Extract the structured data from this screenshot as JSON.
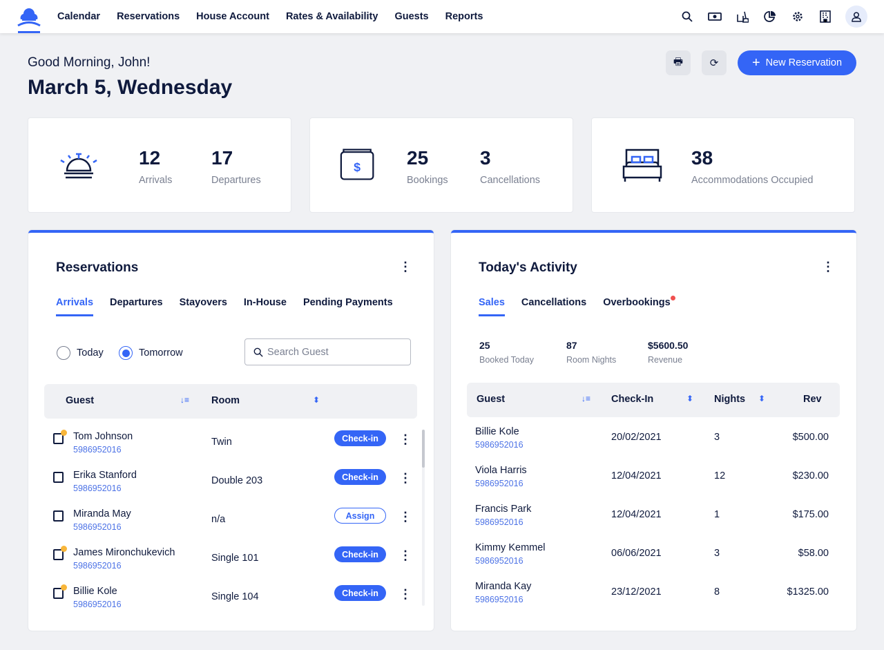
{
  "nav": [
    "Calendar",
    "Reservations",
    "House Account",
    "Rates & Availability",
    "Guests",
    "Reports"
  ],
  "header_icons": [
    "search-icon",
    "cash-icon",
    "housekeeping-icon",
    "pie-chart-icon",
    "gear-icon",
    "building-icon",
    "user-icon"
  ],
  "greeting": "Good Morning, John!",
  "date": "March 5, Wednesday",
  "new_reservation": "New Reservation",
  "stats": {
    "arrivals": {
      "value": "12",
      "label": "Arrivals"
    },
    "departures": {
      "value": "17",
      "label": "Departures"
    },
    "bookings": {
      "value": "25",
      "label": "Bookings"
    },
    "cancellations": {
      "value": "3",
      "label": "Cancellations"
    },
    "occupied": {
      "value": "38",
      "label": "Accommodations Occupied"
    }
  },
  "reservations": {
    "title": "Reservations",
    "tabs": [
      "Arrivals",
      "Departures",
      "Stayovers",
      "In-House",
      "Pending Payments"
    ],
    "radio": [
      "Today",
      "Tomorrow"
    ],
    "selected_radio": "Tomorrow",
    "search_placeholder": "Search Guest",
    "columns": [
      "Guest",
      "Room"
    ],
    "rows": [
      {
        "name": "Tom Johnson",
        "id": "5986952016",
        "room": "Twin",
        "action": "Check-in",
        "flag": true
      },
      {
        "name": "Erika Stanford",
        "id": "5986952016",
        "room": "Double 203",
        "action": "Check-in",
        "flag": false
      },
      {
        "name": "Miranda May",
        "id": "5986952016",
        "room": "n/a",
        "action": "Assign",
        "flag": false
      },
      {
        "name": "James Mironchukevich",
        "id": "5986952016",
        "room": "Single 101",
        "action": "Check-in",
        "flag": true
      },
      {
        "name": "Billie Kole",
        "id": "5986952016",
        "room": "Single 104",
        "action": "Check-in",
        "flag": true
      }
    ]
  },
  "activity": {
    "title": "Today's Activity",
    "tabs": [
      "Sales",
      "Cancellations",
      "Overbookings"
    ],
    "metrics": [
      {
        "value": "25",
        "label": "Booked Today"
      },
      {
        "value": "87",
        "label": "Room Nights"
      },
      {
        "value": "$5600.50",
        "label": "Revenue"
      }
    ],
    "columns": [
      "Guest",
      "Check-In",
      "Nights",
      "Rev"
    ],
    "rows": [
      {
        "name": "Billie Kole",
        "id": "5986952016",
        "checkin": "20/02/2021",
        "nights": "3",
        "rev": "$500.00"
      },
      {
        "name": "Viola Harris",
        "id": "5986952016",
        "checkin": "12/04/2021",
        "nights": "12",
        "rev": "$230.00"
      },
      {
        "name": "Francis Park",
        "id": "5986952016",
        "checkin": "12/04/2021",
        "nights": "1",
        "rev": "$175.00"
      },
      {
        "name": "Kimmy Kemmel",
        "id": "5986952016",
        "checkin": "06/06/2021",
        "nights": "3",
        "rev": "$58.00"
      },
      {
        "name": "Miranda Kay",
        "id": "5986952016",
        "checkin": "23/12/2021",
        "nights": "8",
        "rev": "$1325.00"
      }
    ]
  },
  "colors": {
    "accent": "#3465f6",
    "text": "#0f1a3d",
    "flag": "#f8b63a",
    "alert": "#f0504f"
  }
}
